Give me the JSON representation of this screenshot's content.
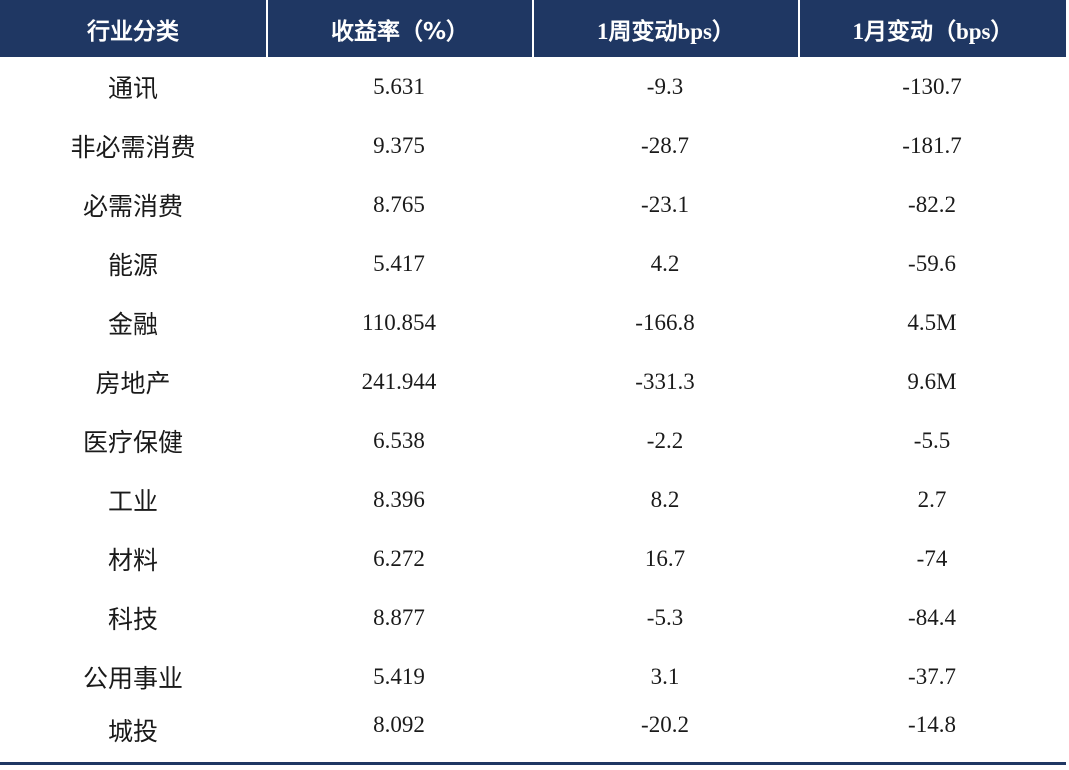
{
  "table": {
    "headers": [
      "行业分类",
      "收益率（%）",
      "1周变动bps）",
      "1月变动（bps）"
    ],
    "rows": [
      [
        "通讯",
        "5.631",
        "-9.3",
        "-130.7"
      ],
      [
        "非必需消费",
        "9.375",
        "-28.7",
        "-181.7"
      ],
      [
        "必需消费",
        "8.765",
        "-23.1",
        "-82.2"
      ],
      [
        "能源",
        "5.417",
        "4.2",
        "-59.6"
      ],
      [
        "金融",
        "110.854",
        "-166.8",
        "4.5M"
      ],
      [
        "房地产",
        "241.944",
        "-331.3",
        "9.6M"
      ],
      [
        "医疗保健",
        "6.538",
        "-2.2",
        "-5.5"
      ],
      [
        "工业",
        "8.396",
        "8.2",
        "2.7"
      ],
      [
        "材料",
        "6.272",
        "16.7",
        "-74"
      ],
      [
        "科技",
        "8.877",
        "-5.3",
        "-84.4"
      ],
      [
        "公用事业",
        "5.419",
        "3.1",
        "-37.7"
      ],
      [
        "城投",
        "8.092",
        "-20.2",
        "-14.8"
      ]
    ]
  },
  "colors": {
    "header_bg": "#1f3763",
    "header_text": "#ffffff",
    "body_text": "#1a1a1a"
  }
}
